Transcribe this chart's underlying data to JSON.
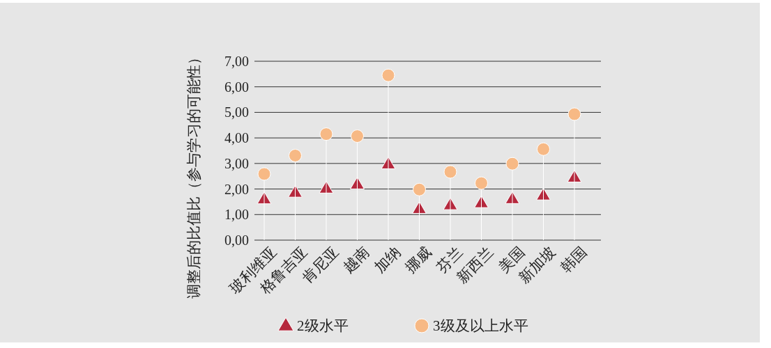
{
  "chart_data": {
    "type": "scatter",
    "ylabel": "调整后的比值比（参与学习的可能性）",
    "categories": [
      "玻利维亚",
      "格鲁吉亚",
      "肯尼亚",
      "越南",
      "加纳",
      "挪威",
      "芬兰",
      "新西兰",
      "美国",
      "新加坡",
      "韩国"
    ],
    "series": [
      {
        "name": "2级水平",
        "marker": "triangle",
        "color": "#b5283d",
        "values": [
          1.6,
          1.86,
          2.02,
          2.18,
          2.97,
          1.22,
          1.37,
          1.45,
          1.61,
          1.75,
          2.45
        ]
      },
      {
        "name": "3级及以上水平",
        "type": "lollipop",
        "marker": "circle",
        "color": "#f7b985",
        "values": [
          2.59,
          3.31,
          4.15,
          4.07,
          6.45,
          1.98,
          2.67,
          2.23,
          2.99,
          3.56,
          4.93
        ]
      }
    ],
    "ylim": [
      0,
      7
    ],
    "yticks": [
      {
        "value": 0,
        "label": "0,00"
      },
      {
        "value": 1,
        "label": "1,00"
      },
      {
        "value": 2,
        "label": "2,00"
      },
      {
        "value": 3,
        "label": "3,00"
      },
      {
        "value": 4,
        "label": "4,00"
      },
      {
        "value": 5,
        "label": "5,00"
      },
      {
        "value": 6,
        "label": "6,00"
      },
      {
        "value": 7,
        "label": "7,00"
      }
    ],
    "grid": "y",
    "legend": "bottom"
  }
}
